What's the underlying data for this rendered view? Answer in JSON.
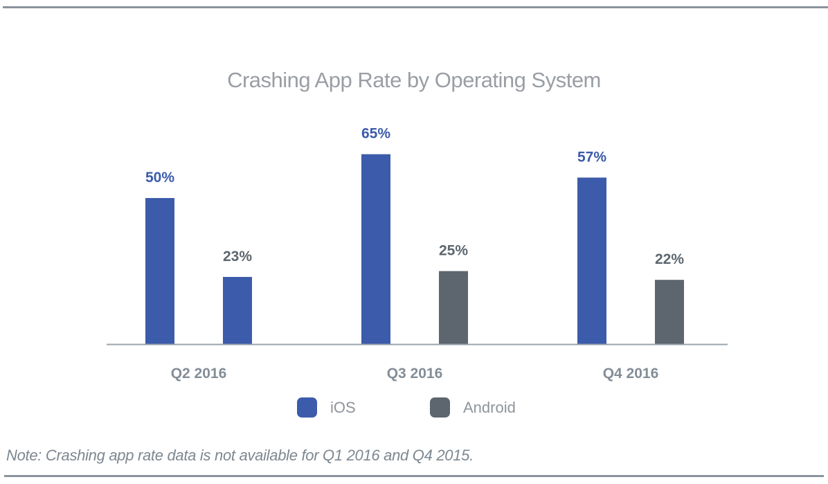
{
  "chart_data": {
    "type": "bar",
    "title": "Crashing App Rate by Operating System",
    "xlabel": "",
    "ylabel": "",
    "ylim": [
      0,
      100
    ],
    "grid": false,
    "y_axis_visible": false,
    "value_format": "{v}%",
    "categories": [
      "Q2 2016",
      "Q3 2016",
      "Q4 2016"
    ],
    "series": [
      {
        "name": "iOS",
        "values": [
          50,
          65,
          57
        ],
        "color": "#3c5baa",
        "label_color": "#3c5baa"
      },
      {
        "name": "Android",
        "values": [
          23,
          25,
          22
        ],
        "color": "#5d666e",
        "label_color": "#5d666e",
        "point_color_overrides": {
          "0": "#3c5baa"
        }
      }
    ],
    "data_labels": [
      [
        "50%",
        "65%",
        "57%"
      ],
      [
        "23%",
        "25%",
        "22%"
      ]
    ],
    "legend": {
      "position": "bottom-center",
      "entries": [
        "iOS",
        "Android"
      ]
    },
    "note": "Note: Crashing app rate data is not available for Q1 2016 and Q4 2015."
  },
  "colors": {
    "rule": "#8a939c",
    "axis": "#9aa3ac",
    "category_label": "#838d97",
    "title": "#9a9ea4",
    "note": "#7d8790"
  }
}
